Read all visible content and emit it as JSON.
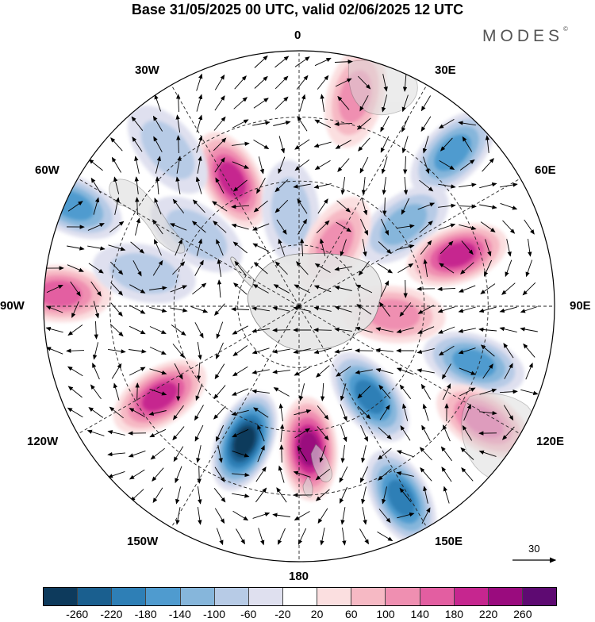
{
  "title": "Base 31/05/2025 00 UTC, valid 02/06/2025 12 UTC",
  "brand": "MODES",
  "brand_mark": "©",
  "longitude_labels": {
    "n": "0",
    "s": "180",
    "e": "90E",
    "w": "90W",
    "w30": "30W",
    "e30": "30E",
    "w60": "60W",
    "e60": "60E",
    "w120": "120W",
    "e120": "120E",
    "w150": "150W",
    "e150": "150E"
  },
  "reference_vector": {
    "label": "30"
  },
  "colorbar": {
    "colors": [
      "#0d3a5c",
      "#1a5f8f",
      "#2e7fb6",
      "#4f9bcf",
      "#86b6db",
      "#b7cbe6",
      "#dfe0ef",
      "#ffffff",
      "#fbdfe0",
      "#f6b9c4",
      "#ef8fb1",
      "#e35ea1",
      "#c6268f",
      "#9a0b7e",
      "#5e0a72"
    ],
    "tick_labels": [
      "-260",
      "-220",
      "-180",
      "-140",
      "-100",
      "-60",
      "-20",
      "20",
      "60",
      "100",
      "140",
      "180",
      "220",
      "260"
    ]
  },
  "anomaly_centers": [
    {
      "lon": 15,
      "colat": 0.85,
      "value": 110
    },
    {
      "lon": 45,
      "colat": 0.85,
      "value": -130
    },
    {
      "lon": 52,
      "colat": 0.52,
      "value": -80
    },
    {
      "lon": 72,
      "colat": 0.65,
      "value": 160
    },
    {
      "lon": 108,
      "colat": 0.72,
      "value": -120
    },
    {
      "lon": 95,
      "colat": 0.37,
      "value": 90
    },
    {
      "lon": 122,
      "colat": 0.85,
      "value": 150
    },
    {
      "lon": 142,
      "colat": 0.45,
      "value": -170
    },
    {
      "lon": 152,
      "colat": 0.85,
      "value": -190
    },
    {
      "lon": 176,
      "colat": 0.56,
      "value": 230
    },
    {
      "lon": -158,
      "colat": 0.57,
      "value": -240
    },
    {
      "lon": -123,
      "colat": 0.65,
      "value": 160
    },
    {
      "lon": -87,
      "colat": 0.94,
      "value": 140
    },
    {
      "lon": -78,
      "colat": 0.62,
      "value": -50
    },
    {
      "lon": -55,
      "colat": 0.49,
      "value": -60
    },
    {
      "lon": -66,
      "colat": 0.97,
      "value": -130
    },
    {
      "lon": -28,
      "colat": 0.56,
      "value": 180
    },
    {
      "lon": -5,
      "colat": 0.37,
      "value": -70
    },
    {
      "lon": 30,
      "colat": 0.28,
      "value": 100
    },
    {
      "lon": -40,
      "colat": 0.8,
      "value": -40
    }
  ]
}
